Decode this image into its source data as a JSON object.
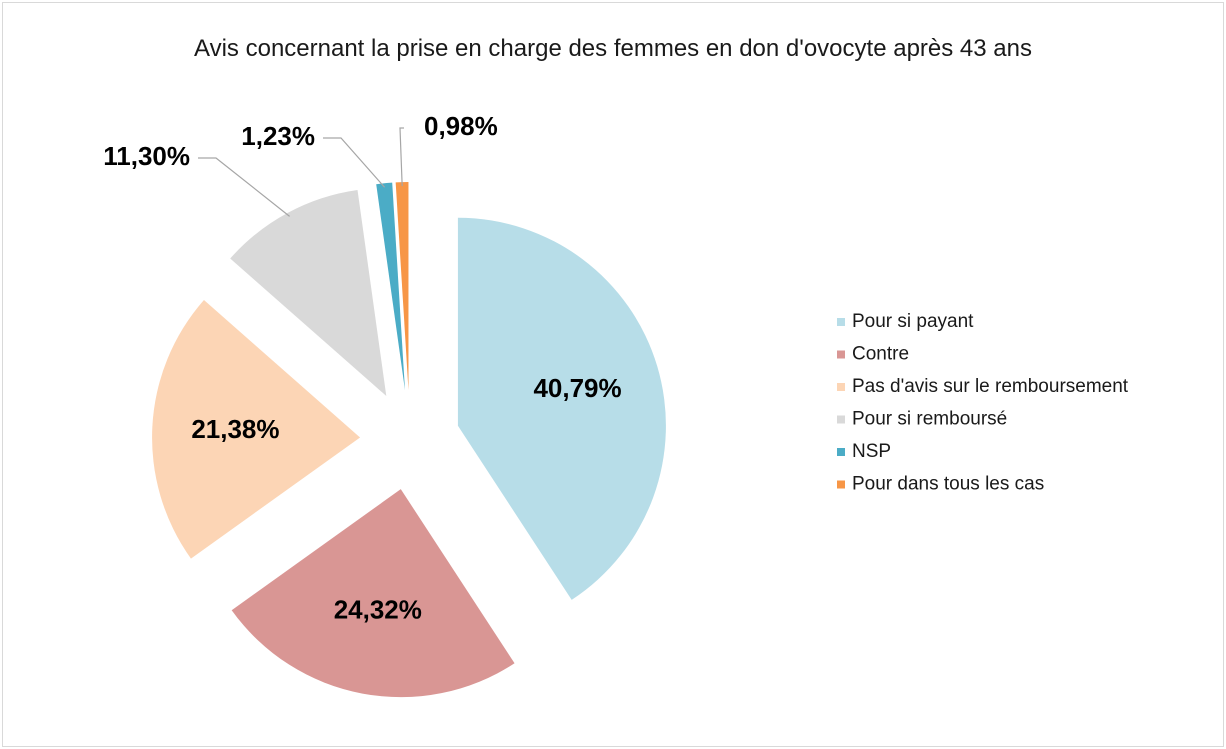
{
  "chart_data": {
    "type": "pie",
    "title": "Avis concernant la prise en charge des femmes en don d'ovocyte après 43 ans",
    "categories": [
      "Pour si payant",
      "Contre",
      "Pas d'avis sur le remboursement",
      "Pour si remboursé",
      "NSP",
      "Pour dans tous les cas"
    ],
    "values": [
      40.79,
      24.32,
      21.38,
      11.3,
      1.23,
      0.98
    ],
    "value_labels": [
      "40,79%",
      "24,32%",
      "21,38%",
      "11,30%",
      "1,23%",
      "0,98%"
    ],
    "colors": [
      "#b7dde8",
      "#d99694",
      "#fcd5b5",
      "#d9d9d9",
      "#4bacc6",
      "#f79646"
    ],
    "legend": "right"
  }
}
